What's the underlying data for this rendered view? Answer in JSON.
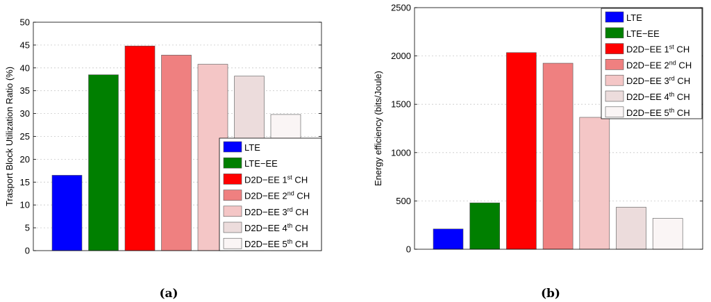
{
  "chart_data": [
    {
      "type": "bar",
      "caption": "(a)",
      "ylabel": "Trasport Block Utilization Ratio (%)",
      "ylim": [
        0,
        50
      ],
      "yticks": [
        0,
        5,
        10,
        15,
        20,
        25,
        30,
        35,
        40,
        45,
        50
      ],
      "grid": true,
      "legend_position": "bottom-right",
      "categories": [
        "LTE",
        "LTE-EE",
        "D2D-EE 1st CH",
        "D2D-EE 2nd CH",
        "D2D-EE 3rd CH",
        "D2D-EE 4th CH",
        "D2D-EE 5th CH"
      ],
      "values": [
        16.5,
        38.5,
        44.8,
        42.8,
        40.8,
        38.2,
        29.8
      ],
      "colors": [
        "#0000ff",
        "#007f00",
        "#ff0000",
        "#ef8080",
        "#f4c6c6",
        "#ecdcdc",
        "#faf5f5"
      ],
      "legend": [
        {
          "base": "LTE",
          "sup": "",
          "tail": ""
        },
        {
          "base": "LTE−EE",
          "sup": "",
          "tail": ""
        },
        {
          "base": "D2D−EE 1",
          "sup": "st",
          "tail": " CH"
        },
        {
          "base": "D2D−EE 2",
          "sup": "nd",
          "tail": " CH"
        },
        {
          "base": "D2D−EE 3",
          "sup": "rd",
          "tail": " CH"
        },
        {
          "base": "D2D−EE 4",
          "sup": "th",
          "tail": " CH"
        },
        {
          "base": "D2D−EE 5",
          "sup": "th",
          "tail": " CH"
        }
      ]
    },
    {
      "type": "bar",
      "caption": "(b)",
      "ylabel": "Energy efficiency (bits/Joule)",
      "ylim": [
        0,
        2500
      ],
      "yticks": [
        0,
        500,
        1000,
        1500,
        2000,
        2500
      ],
      "grid": true,
      "legend_position": "top-right",
      "categories": [
        "LTE",
        "LTE-EE",
        "D2D-EE 1st CH",
        "D2D-EE 2nd CH",
        "D2D-EE 3rd CH",
        "D2D-EE 4th CH",
        "D2D-EE 5th CH"
      ],
      "values": [
        210,
        480,
        2035,
        1925,
        1365,
        435,
        320
      ],
      "colors": [
        "#0000ff",
        "#007f00",
        "#ff0000",
        "#ef8080",
        "#f4c6c6",
        "#ecdcdc",
        "#faf5f5"
      ],
      "legend": [
        {
          "base": "LTE",
          "sup": "",
          "tail": ""
        },
        {
          "base": "LTE−EE",
          "sup": "",
          "tail": ""
        },
        {
          "base": "D2D−EE 1",
          "sup": "st",
          "tail": " CH"
        },
        {
          "base": "D2D−EE 2",
          "sup": "nd",
          "tail": " CH"
        },
        {
          "base": "D2D−EE 3",
          "sup": "rd",
          "tail": " CH"
        },
        {
          "base": "D2D−EE 4",
          "sup": "th",
          "tail": " CH"
        },
        {
          "base": "D2D−EE 5",
          "sup": "th",
          "tail": " CH"
        }
      ]
    }
  ]
}
